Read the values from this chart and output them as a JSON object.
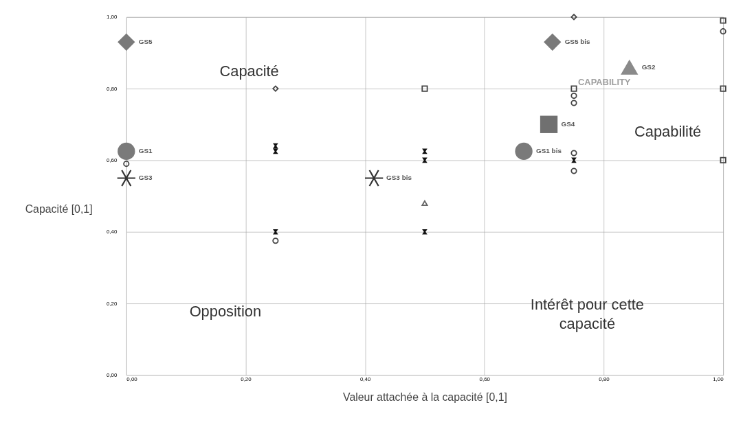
{
  "chart_data": {
    "type": "scatter",
    "xlabel": "Valeur attachée à la capacité [0,1]",
    "ylabel": "Capacité [0,1]",
    "xlim": [
      0,
      1
    ],
    "ylim": [
      0,
      1
    ],
    "xticks": [
      {
        "value": 0,
        "label": "0,00"
      },
      {
        "value": 0.2,
        "label": "0,20"
      },
      {
        "value": 0.4,
        "label": "0,40"
      },
      {
        "value": 0.6,
        "label": "0,60"
      },
      {
        "value": 0.8,
        "label": "0,80"
      },
      {
        "value": 1,
        "label": "1,00"
      }
    ],
    "yticks": [
      {
        "value": 0,
        "label": "0,00"
      },
      {
        "value": 0.2,
        "label": "0,20"
      },
      {
        "value": 0.4,
        "label": "0,40"
      },
      {
        "value": 0.6,
        "label": "0,60"
      },
      {
        "value": 0.8,
        "label": "0,80"
      },
      {
        "value": 1,
        "label": "1,00"
      }
    ],
    "grid": true,
    "series": [
      {
        "marker": "diamond",
        "color": "#7a7a7a",
        "x": [
          0,
          0.714
        ],
        "values": [
          0.93,
          0.93
        ]
      },
      {
        "marker": "circle",
        "color": "#7a7a7a",
        "x": [
          0,
          0.666
        ],
        "values": [
          0.625,
          0.625
        ]
      },
      {
        "marker": "cross",
        "color": "#333333",
        "x": [
          0,
          0.415
        ],
        "values": [
          0.55,
          0.55
        ]
      },
      {
        "marker": "square",
        "color": "#707070",
        "x": [
          0.708
        ],
        "values": [
          0.7
        ]
      },
      {
        "marker": "triangle",
        "color": "#8a8a8a",
        "x": [
          0.843
        ],
        "values": [
          0.86
        ]
      },
      {
        "marker": "diamond",
        "color": "#444444",
        "x": [
          0.25,
          0.75
        ],
        "values": [
          0.8,
          1.0
        ]
      },
      {
        "marker": "square",
        "color": "#444444",
        "x": [
          0.5,
          0.75,
          1.0,
          1.0,
          1.0
        ],
        "values": [
          0.8,
          0.8,
          0.8,
          0.6,
          0.99
        ]
      },
      {
        "marker": "circle",
        "color": "#444444",
        "x": [
          0,
          0.25,
          0.75,
          0.75,
          0.75,
          0.75,
          1.0
        ],
        "values": [
          0.59,
          0.375,
          0.78,
          0.76,
          0.62,
          0.57,
          0.96
        ]
      },
      {
        "marker": "cross",
        "color": "#111111",
        "x": [
          0.25,
          0.25,
          0.25,
          0.5,
          0.5,
          0.5,
          0.75
        ],
        "values": [
          0.64,
          0.625,
          0.4,
          0.625,
          0.6,
          0.4,
          0.6
        ]
      },
      {
        "marker": "triangle",
        "color": "#666666",
        "x": [
          0.5
        ],
        "values": [
          0.48
        ]
      }
    ],
    "annotations": [
      {
        "text": "GS5",
        "x": 0,
        "y": 0.93
      },
      {
        "text": "GS1",
        "x": 0,
        "y": 0.625
      },
      {
        "text": "GS3",
        "x": 0,
        "y": 0.55
      },
      {
        "text": "GS3 bis",
        "x": 0.415,
        "y": 0.55
      },
      {
        "text": "GS5 bis",
        "x": 0.714,
        "y": 0.93
      },
      {
        "text": "GS2",
        "x": 0.843,
        "y": 0.86
      },
      {
        "text": "GS4",
        "x": 0.708,
        "y": 0.7
      },
      {
        "text": "GS1 bis",
        "x": 0.666,
        "y": 0.625
      },
      "Capacité",
      "Capabilité",
      "Opposition",
      "Intérêt pour cette capacité",
      "CAPABILITY"
    ]
  }
}
